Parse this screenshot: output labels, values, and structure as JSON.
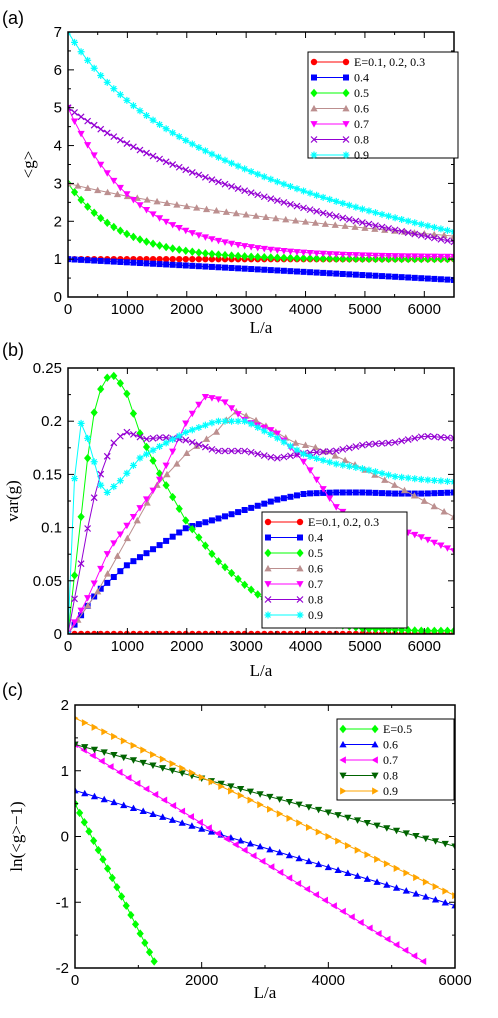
{
  "chart_data": [
    {
      "panel_label": "(a)",
      "type": "line",
      "xlabel": "L/a",
      "ylabel": "<g>",
      "xlim": [
        0,
        6500
      ],
      "ylim": [
        0,
        7
      ],
      "xticks": [
        0,
        1000,
        2000,
        3000,
        4000,
        5000,
        6000
      ],
      "yticks": [
        0,
        1,
        2,
        3,
        4,
        5,
        6,
        7
      ],
      "legend_position": "top-right",
      "series": [
        {
          "name": "E=0.1, 0.2, 0.3",
          "color": "#ff0000",
          "marker": "circle",
          "x_range": [
            0,
            6500
          ],
          "n_points": 60,
          "formula": "const",
          "params": {
            "a": 1.0
          }
        },
        {
          "name": "0.4",
          "color": "#0000ff",
          "marker": "square",
          "x_range": [
            0,
            6500
          ],
          "n_points": 60,
          "formula": "linear",
          "params": {
            "a": 1.0,
            "end": 0.45
          }
        },
        {
          "name": "0.5",
          "color": "#00ff00",
          "marker": "diamond",
          "x_range": [
            0,
            6500
          ],
          "n_points": 60,
          "formula": "expdecay",
          "params": {
            "asym": 1.0,
            "amp": 2.0,
            "tau": 900
          }
        },
        {
          "name": "0.6",
          "color": "#bc8f8f",
          "marker": "triangle-up",
          "x_range": [
            0,
            6500
          ],
          "n_points": 40,
          "formula": "log",
          "params": {
            "y0": 3.0,
            "amp": 1.29,
            "c": 3350
          }
        },
        {
          "name": "0.7",
          "color": "#ff00ff",
          "marker": "triangle-down",
          "x_range": [
            0,
            6500
          ],
          "n_points": 60,
          "formula": "expdecay",
          "params": {
            "asym": 1.05,
            "amp": 3.95,
            "tau": 1150
          }
        },
        {
          "name": "0.8",
          "color": "#9400d3",
          "marker": "x",
          "x_range": [
            0,
            6500
          ],
          "n_points": 60,
          "formula": "log",
          "params": {
            "y0": 5.0,
            "amp": 2.64,
            "c": 2300
          }
        },
        {
          "name": "0.9",
          "color": "#00ffff",
          "marker": "star",
          "x_range": [
            0,
            6500
          ],
          "n_points": 60,
          "formula": "log",
          "params": {
            "y0": 7.0,
            "amp": 2.62,
            "c": 1000
          }
        }
      ]
    },
    {
      "panel_label": "(b)",
      "type": "line",
      "xlabel": "L/a",
      "ylabel": "var(g)",
      "xlim": [
        0,
        6500
      ],
      "ylim": [
        0,
        0.25
      ],
      "xticks": [
        0,
        1000,
        2000,
        3000,
        4000,
        5000,
        6000
      ],
      "yticks": [
        0,
        0.05,
        0.1,
        0.15,
        0.2,
        0.25
      ],
      "legend_position": "center-right",
      "series": [
        {
          "name": "E=0.1, 0.2, 0.3",
          "color": "#ff0000",
          "marker": "circle",
          "points": [
            [
              0,
              0
            ],
            [
              6500,
              0
            ]
          ],
          "n_markers": 60
        },
        {
          "name": "0.4",
          "color": "#0000ff",
          "marker": "square",
          "points": [
            [
              0,
              0
            ],
            [
              500,
              0.04
            ],
            [
              1000,
              0.065
            ],
            [
              1500,
              0.082
            ],
            [
              2000,
              0.1
            ],
            [
              2500,
              0.108
            ],
            [
              3000,
              0.117
            ],
            [
              3500,
              0.126
            ],
            [
              4000,
              0.132
            ],
            [
              4500,
              0.133
            ],
            [
              5000,
              0.133
            ],
            [
              5500,
              0.132
            ],
            [
              6000,
              0.132
            ],
            [
              6500,
              0.133
            ]
          ],
          "n_markers": 60
        },
        {
          "name": "0.5",
          "color": "#00ff00",
          "marker": "diamond",
          "points": [
            [
              0,
              0
            ],
            [
              200,
              0.1
            ],
            [
              400,
              0.2
            ],
            [
              600,
              0.24
            ],
            [
              800,
              0.243
            ],
            [
              1000,
              0.225
            ],
            [
              1200,
              0.19
            ],
            [
              1500,
              0.155
            ],
            [
              2000,
              0.105
            ],
            [
              2500,
              0.07
            ],
            [
              3000,
              0.045
            ],
            [
              3500,
              0.025
            ],
            [
              4000,
              0.013
            ],
            [
              5000,
              0.005
            ],
            [
              6000,
              0.003
            ],
            [
              6500,
              0.003
            ]
          ],
          "n_markers": 60
        },
        {
          "name": "0.6",
          "color": "#bc8f8f",
          "marker": "triangle-up",
          "points": [
            [
              0,
              0
            ],
            [
              500,
              0.04
            ],
            [
              1000,
              0.09
            ],
            [
              1500,
              0.14
            ],
            [
              2000,
              0.17
            ],
            [
              2500,
              0.19
            ],
            [
              2800,
              0.21
            ],
            [
              3200,
              0.2
            ],
            [
              3800,
              0.18
            ],
            [
              4200,
              0.175
            ],
            [
              4800,
              0.16
            ],
            [
              5500,
              0.14
            ],
            [
              6000,
              0.125
            ],
            [
              6500,
              0.11
            ]
          ],
          "n_markers": 40
        },
        {
          "name": "0.7",
          "color": "#ff00ff",
          "marker": "triangle-down",
          "points": [
            [
              0,
              0
            ],
            [
              300,
              0.03
            ],
            [
              700,
              0.08
            ],
            [
              1100,
              0.11
            ],
            [
              1500,
              0.14
            ],
            [
              2000,
              0.2
            ],
            [
              2300,
              0.223
            ],
            [
              2600,
              0.22
            ],
            [
              3000,
              0.2
            ],
            [
              3500,
              0.19
            ],
            [
              4000,
              0.16
            ],
            [
              4500,
              0.12
            ],
            [
              5000,
              0.1
            ],
            [
              5500,
              0.1
            ],
            [
              6000,
              0.09
            ],
            [
              6500,
              0.078
            ]
          ],
          "n_markers": 60
        },
        {
          "name": "0.8",
          "color": "#9400d3",
          "marker": "x",
          "points": [
            [
              0,
              0
            ],
            [
              200,
              0.06
            ],
            [
              400,
              0.12
            ],
            [
              600,
              0.16
            ],
            [
              800,
              0.183
            ],
            [
              1000,
              0.19
            ],
            [
              1300,
              0.183
            ],
            [
              1600,
              0.185
            ],
            [
              2000,
              0.182
            ],
            [
              2500,
              0.172
            ],
            [
              3000,
              0.172
            ],
            [
              3500,
              0.165
            ],
            [
              4000,
              0.17
            ],
            [
              4500,
              0.172
            ],
            [
              5000,
              0.178
            ],
            [
              5500,
              0.18
            ],
            [
              6000,
              0.186
            ],
            [
              6500,
              0.184
            ]
          ],
          "n_markers": 60
        },
        {
          "name": "0.9",
          "color": "#00ffff",
          "marker": "star",
          "points": [
            [
              0,
              0
            ],
            [
              100,
              0.14
            ],
            [
              200,
              0.2
            ],
            [
              300,
              0.19
            ],
            [
              400,
              0.17
            ],
            [
              600,
              0.13
            ],
            [
              900,
              0.145
            ],
            [
              1200,
              0.165
            ],
            [
              1500,
              0.175
            ],
            [
              2000,
              0.19
            ],
            [
              2500,
              0.2
            ],
            [
              3000,
              0.2
            ],
            [
              3500,
              0.185
            ],
            [
              4000,
              0.168
            ],
            [
              4500,
              0.16
            ],
            [
              5000,
              0.155
            ],
            [
              5500,
              0.148
            ],
            [
              6000,
              0.145
            ],
            [
              6500,
              0.143
            ]
          ],
          "n_markers": 60
        }
      ]
    },
    {
      "panel_label": "(c)",
      "type": "line",
      "xlabel": "L/a",
      "ylabel": "ln(<g>−1)",
      "xlim": [
        0,
        6000
      ],
      "ylim": [
        -2,
        2
      ],
      "xticks": [
        0,
        2000,
        4000,
        6000
      ],
      "yticks": [
        -2,
        -1,
        0,
        1,
        2
      ],
      "legend_position": "top-right",
      "series": [
        {
          "name": "E=0.5",
          "color": "#00ff00",
          "marker": "diamond",
          "x_range": [
            0,
            1250
          ],
          "n_points": 18,
          "formula": "linear",
          "params": {
            "a": 0.5,
            "end": -1.9
          }
        },
        {
          "name": "0.6",
          "color": "#0000ff",
          "marker": "triangle-up",
          "x_range": [
            0,
            6000
          ],
          "n_points": 40,
          "formula": "linear",
          "params": {
            "a": 0.7,
            "end": -1.05
          }
        },
        {
          "name": "0.7",
          "color": "#ff00ff",
          "marker": "triangle-left",
          "x_range": [
            0,
            5500
          ],
          "n_points": 40,
          "formula": "linear",
          "params": {
            "a": 1.4,
            "end": -1.9
          }
        },
        {
          "name": "0.8",
          "color": "#006400",
          "marker": "triangle-down",
          "x_range": [
            0,
            6000
          ],
          "n_points": 40,
          "formula": "linear",
          "params": {
            "a": 1.4,
            "end": -0.15
          }
        },
        {
          "name": "0.9",
          "color": "#ffa500",
          "marker": "triangle-right",
          "x_range": [
            0,
            6000
          ],
          "n_points": 40,
          "formula": "linear",
          "params": {
            "a": 1.8,
            "end": -0.9
          }
        }
      ]
    }
  ]
}
